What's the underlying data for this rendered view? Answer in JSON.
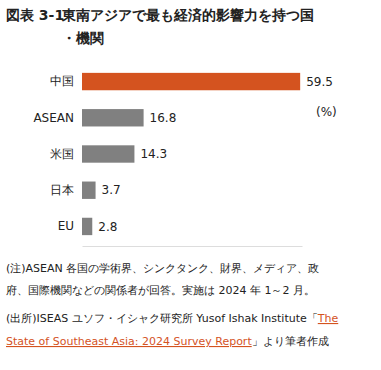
{
  "chart_data": {
    "type": "bar",
    "orientation": "horizontal",
    "figure_label": "図表 3-1",
    "title": "東南アジアで最も経済的影響力を持つ国・機関",
    "categories": [
      "中国",
      "ASEAN",
      "米国",
      "日本",
      "EU"
    ],
    "values": [
      59.5,
      16.8,
      14.3,
      3.7,
      2.8
    ],
    "colors": [
      "#d4531f",
      "#808080",
      "#808080",
      "#808080",
      "#808080"
    ],
    "xlim": [
      0,
      60
    ],
    "xticks": [],
    "tick_labels": "y",
    "data_labels": true,
    "grid": false,
    "unit": "(%)",
    "notes": [
      "(注)ASEAN 各国の学術界、シンクタンク、財界、メディア、政",
      "府、国際機関などの関係者が回答。実施は 2024 年 1～2 月。"
    ],
    "source": [
      "(出所)ISEAS ユソフ・イシャク研究所 Yusof Ishak Institute「",
      "」より筆者作成"
    ],
    "source_title": [
      "The",
      "State of Southeast Asia: 2024 Survey Report"
    ]
  }
}
